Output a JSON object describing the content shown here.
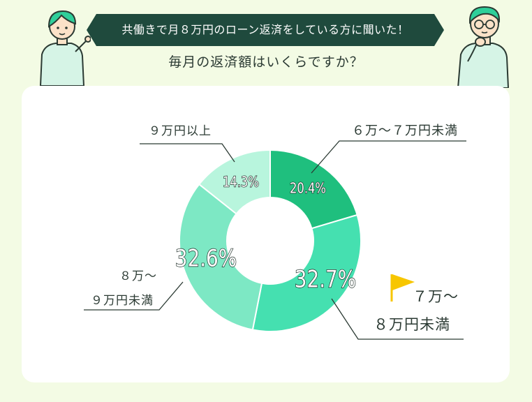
{
  "header": {
    "banner_text": "共働きで月８万円のローン返済をしている方に聞いた！",
    "question": "毎月の返済額はいくらですか？"
  },
  "colors": {
    "banner": "#1f4a3d",
    "background": "#f3fbe4",
    "card": "#ffffff",
    "leader_line": "#2b3a33",
    "flag": "#f7c600",
    "slice_6_7": "#1fbf7e",
    "slice_7_8": "#45e0b0",
    "slice_8_9": "#7de8c4",
    "slice_9plus": "#b8f5dd"
  },
  "icons": {
    "left_person": "woman-pointing-icon",
    "right_person": "man-thinking-icon",
    "highlight": "flag-icon"
  },
  "chart_data": {
    "type": "pie",
    "title": "毎月の返済額はいくらですか？",
    "donut": true,
    "slices": [
      {
        "label": "６万〜７万円未満",
        "label_lines": [
          "６万〜７万円未満"
        ],
        "value": 20.4,
        "value_label": "20.4%",
        "color": "#1fbf7e"
      },
      {
        "label": "７万〜８万円未満",
        "label_lines": [
          "７万〜",
          "８万円未満"
        ],
        "value": 32.7,
        "value_label": "32.7%",
        "color": "#45e0b0",
        "highlighted": true
      },
      {
        "label": "８万〜９万円未満",
        "label_lines": [
          "８万〜",
          "９万円未満"
        ],
        "value": 32.6,
        "value_label": "32.6%",
        "color": "#7de8c4"
      },
      {
        "label": "９万円以上",
        "label_lines": [
          "９万円以上"
        ],
        "value": 14.3,
        "value_label": "14.3%",
        "color": "#b8f5dd"
      }
    ]
  }
}
